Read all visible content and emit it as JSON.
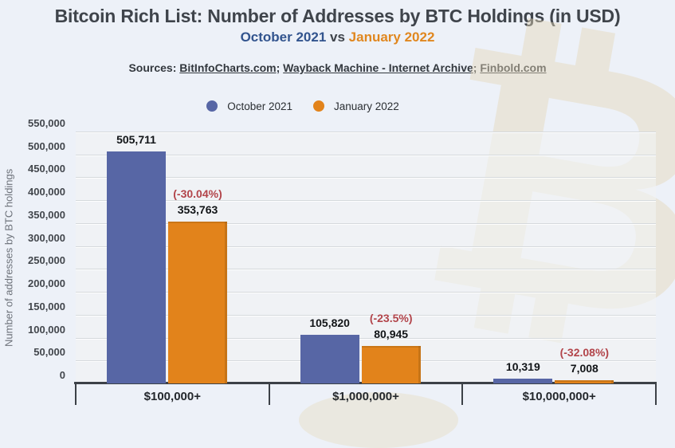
{
  "header": {
    "title": "Bitcoin Rich List: Number of Addresses by BTC Holdings (in USD)",
    "subtitle_left": "October 2021",
    "subtitle_vs": " vs ",
    "subtitle_right": "January 2022",
    "sources_label": "Sources: ",
    "sources": [
      "BitInfoCharts.com",
      "Wayback Machine - Internet Archive",
      "Finbold.com"
    ],
    "sources_separator": "; "
  },
  "legend": {
    "items": [
      {
        "label": "October 2021",
        "color": "#5766a5"
      },
      {
        "label": "January 2022",
        "color": "#e2831b"
      }
    ]
  },
  "colors": {
    "bar_blue": "#5766a5",
    "bar_orange": "#e2831b",
    "pct_red": "#b2444a",
    "subtitle_blue": "#32548e",
    "subtitle_orange": "#e0871f",
    "background": "#edf1f8"
  },
  "watermark_glyph": "₿",
  "chart_data": {
    "type": "bar",
    "title": "Bitcoin Rich List: Number of Addresses by BTC Holdings (in USD)",
    "subtitle": "October 2021 vs January 2022",
    "categories": [
      "$100,000+",
      "$1,000,000+",
      "$10,000,000+"
    ],
    "series": [
      {
        "name": "October 2021",
        "color": "#5766a5",
        "values": [
          505711,
          105820,
          10319
        ],
        "value_labels": [
          "505,711",
          "105,820",
          "10,319"
        ]
      },
      {
        "name": "January 2022",
        "color": "#e2831b",
        "values": [
          353763,
          80945,
          7008
        ],
        "value_labels": [
          "353,763",
          "80,945",
          "7,008"
        ]
      }
    ],
    "pct_change_labels": [
      "(-30.04%)",
      "(-23.5%)",
      "(-32.08%)"
    ],
    "xlabel": "",
    "ylabel": "Number of addresses by BTC holdings",
    "ylim": [
      0,
      550000
    ],
    "ytick_step": 50000,
    "ytick_labels": [
      "0",
      "50,000",
      "100,000",
      "150,000",
      "200,000",
      "250,000",
      "300,000",
      "350,000",
      "400,000",
      "450,000",
      "500,000",
      "550,000"
    ],
    "grid": true,
    "legend_position": "top-center"
  }
}
